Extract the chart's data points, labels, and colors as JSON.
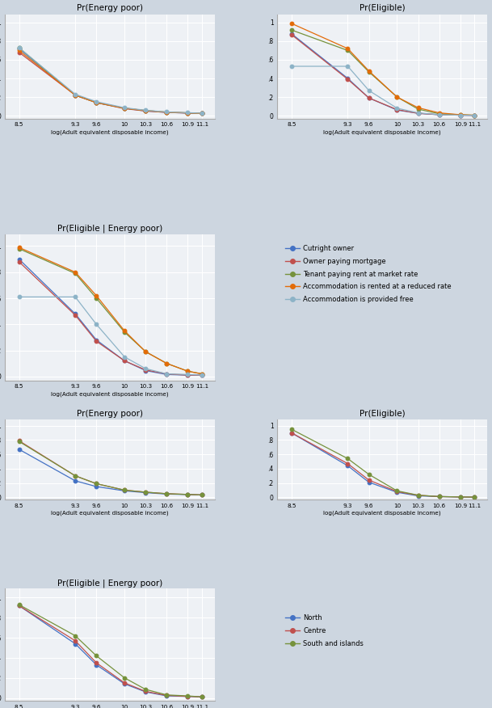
{
  "x_ticks": [
    8.5,
    9.3,
    9.6,
    10,
    10.3,
    10.6,
    10.9,
    11.1
  ],
  "x_tick_labels": [
    "8.5",
    "9.3",
    "9.6",
    "10",
    "10.3",
    "10.6",
    "10.9",
    "11.1"
  ],
  "y_ticks": [
    0,
    0.2,
    0.4,
    0.6,
    0.8,
    1.0
  ],
  "y_tick_labels": [
    "0",
    ".2",
    ".4",
    ".6",
    ".8",
    "1"
  ],
  "xlabel": "log(Adult equivalent disposable income)",
  "bg_color": "#cdd6e0",
  "plot_bg": "#eef1f5",
  "grid_color": "white",
  "tenure_colors": [
    "#4472c4",
    "#c0504d",
    "#76923c",
    "#e36c09",
    "#8db3c7"
  ],
  "tenure_labels": [
    "Cutright owner",
    "Owner paying mortgage",
    "Tenant paying rent at market rate",
    "Accommodation is rented at a reduced rate",
    "Accommodation is provided free"
  ],
  "area_colors": [
    "#4472c4",
    "#c0504d",
    "#76923c"
  ],
  "area_labels": [
    "North",
    "Centre",
    "South and islands"
  ],
  "tenure_ep": [
    [
      0.72,
      0.22,
      0.14,
      0.08,
      0.05,
      0.035,
      0.028,
      0.025
    ],
    [
      0.68,
      0.22,
      0.14,
      0.075,
      0.05,
      0.035,
      0.028,
      0.025
    ],
    [
      0.73,
      0.22,
      0.14,
      0.08,
      0.055,
      0.038,
      0.03,
      0.025
    ],
    [
      0.7,
      0.22,
      0.14,
      0.08,
      0.055,
      0.038,
      0.03,
      0.025
    ],
    [
      0.73,
      0.23,
      0.15,
      0.085,
      0.058,
      0.04,
      0.032,
      0.027
    ]
  ],
  "tenure_elig": [
    [
      0.88,
      0.4,
      0.19,
      0.06,
      0.025,
      0.01,
      0.005,
      0.003
    ],
    [
      0.87,
      0.39,
      0.19,
      0.065,
      0.025,
      0.01,
      0.005,
      0.003
    ],
    [
      0.92,
      0.7,
      0.47,
      0.2,
      0.07,
      0.02,
      0.01,
      0.005
    ],
    [
      0.99,
      0.72,
      0.48,
      0.2,
      0.085,
      0.03,
      0.01,
      0.005
    ],
    [
      0.53,
      0.53,
      0.27,
      0.08,
      0.03,
      0.01,
      0.005,
      0.003
    ]
  ],
  "tenure_cond": [
    [
      0.9,
      0.48,
      0.28,
      0.12,
      0.045,
      0.015,
      0.01,
      0.01
    ],
    [
      0.88,
      0.47,
      0.27,
      0.12,
      0.05,
      0.02,
      0.01,
      0.01
    ],
    [
      0.98,
      0.79,
      0.6,
      0.34,
      0.19,
      0.1,
      0.04,
      0.02
    ],
    [
      0.99,
      0.8,
      0.62,
      0.35,
      0.19,
      0.1,
      0.04,
      0.02
    ],
    [
      0.61,
      0.61,
      0.4,
      0.15,
      0.06,
      0.02,
      0.015,
      0.01
    ]
  ],
  "area_ep": [
    [
      0.67,
      0.23,
      0.15,
      0.09,
      0.065,
      0.045,
      0.038,
      0.032
    ],
    [
      0.79,
      0.3,
      0.19,
      0.1,
      0.072,
      0.05,
      0.04,
      0.033
    ],
    [
      0.78,
      0.3,
      0.19,
      0.1,
      0.072,
      0.05,
      0.04,
      0.033
    ]
  ],
  "area_elig": [
    [
      0.9,
      0.44,
      0.21,
      0.07,
      0.02,
      0.01,
      0.005,
      0.003
    ],
    [
      0.9,
      0.47,
      0.24,
      0.08,
      0.028,
      0.01,
      0.005,
      0.003
    ],
    [
      0.95,
      0.54,
      0.32,
      0.09,
      0.03,
      0.01,
      0.005,
      0.003
    ]
  ],
  "area_cond": [
    [
      0.92,
      0.54,
      0.33,
      0.14,
      0.06,
      0.02,
      0.015,
      0.01
    ],
    [
      0.92,
      0.57,
      0.35,
      0.15,
      0.065,
      0.025,
      0.015,
      0.01
    ],
    [
      0.93,
      0.62,
      0.42,
      0.2,
      0.085,
      0.03,
      0.02,
      0.01
    ]
  ]
}
